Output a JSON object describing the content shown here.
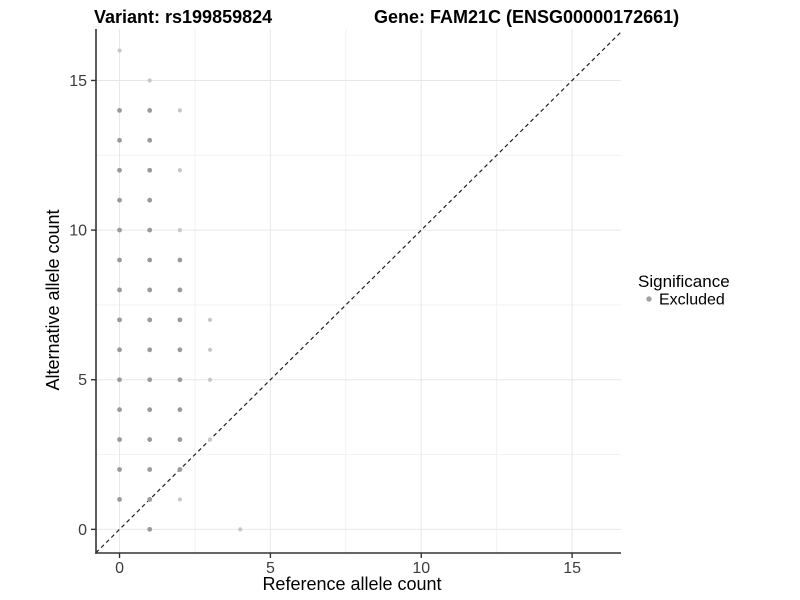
{
  "chart_data": {
    "type": "scatter",
    "titles": {
      "left": "Variant: rs199859824",
      "right": "Gene: FAM21C (ENSG00000172661)"
    },
    "xlabel": "Reference allele count",
    "ylabel": "Alternative allele count",
    "axes": {
      "x": {
        "ticks": [
          0,
          5,
          10,
          15
        ],
        "minor": [
          2.5,
          7.5,
          12.5
        ],
        "lim": [
          -0.78,
          16.62
        ]
      },
      "y": {
        "ticks": [
          0,
          5,
          10,
          15
        ],
        "minor": [
          2.5,
          7.5,
          12.5
        ],
        "lim": [
          -0.79,
          16.72
        ]
      }
    },
    "grid": "major+minor",
    "legend": {
      "title": "Significance",
      "position": "right",
      "items": [
        {
          "label": "Excluded",
          "color": "#a3a3a3"
        }
      ]
    },
    "reference_line": {
      "kind": "y=x",
      "style": "dashed",
      "color": "#1f1f1f"
    },
    "points": {
      "color_primary": "#9a9a9a",
      "color_faint": "#c7c7c7",
      "primary": [
        [
          0,
          1
        ],
        [
          0,
          2
        ],
        [
          0,
          3
        ],
        [
          0,
          4
        ],
        [
          0,
          5
        ],
        [
          0,
          6
        ],
        [
          0,
          7
        ],
        [
          0,
          8
        ],
        [
          0,
          9
        ],
        [
          0,
          10
        ],
        [
          0,
          11
        ],
        [
          0,
          12
        ],
        [
          0,
          13
        ],
        [
          0,
          14
        ],
        [
          1,
          0
        ],
        [
          1,
          1
        ],
        [
          1,
          2
        ],
        [
          1,
          3
        ],
        [
          1,
          4
        ],
        [
          1,
          5
        ],
        [
          1,
          6
        ],
        [
          1,
          7
        ],
        [
          1,
          8
        ],
        [
          1,
          9
        ],
        [
          1,
          10
        ],
        [
          1,
          11
        ],
        [
          1,
          12
        ],
        [
          1,
          13
        ],
        [
          1,
          14
        ],
        [
          2,
          2
        ],
        [
          2,
          3
        ],
        [
          2,
          4
        ],
        [
          2,
          5
        ],
        [
          2,
          6
        ],
        [
          2,
          7
        ],
        [
          2,
          8
        ],
        [
          2,
          9
        ]
      ],
      "faint": [
        [
          0,
          16
        ],
        [
          1,
          15
        ],
        [
          2,
          1
        ],
        [
          2,
          10
        ],
        [
          2,
          12
        ],
        [
          2,
          14
        ],
        [
          3,
          3
        ],
        [
          3,
          5
        ],
        [
          3,
          6
        ],
        [
          3,
          7
        ],
        [
          4,
          0
        ]
      ]
    },
    "style": {
      "grid_major": "#e7e7e7",
      "grid_minor": "#f2f2f2",
      "axis_line": "#333333",
      "tick_mark": "#333333",
      "tick_label": "#3d3d3d",
      "text": "#000000",
      "background": "#ffffff"
    }
  }
}
